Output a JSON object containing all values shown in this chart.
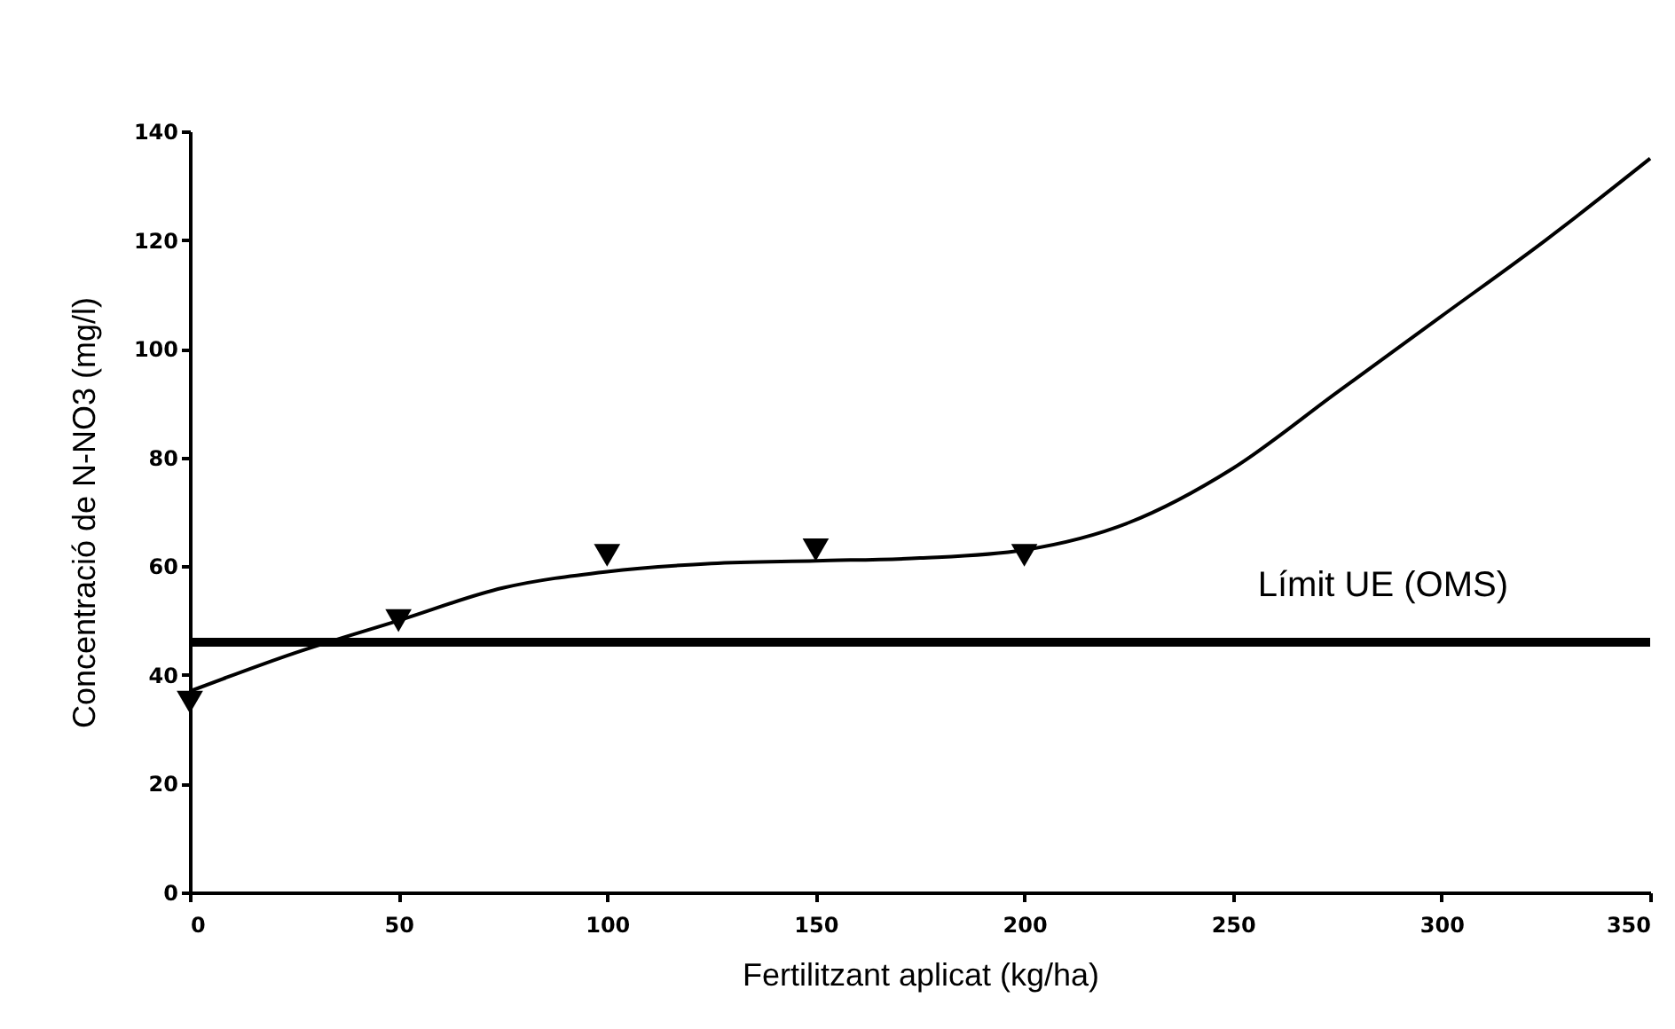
{
  "chart_data": {
    "type": "line",
    "xlabel": "Fertilitzant aplicat  (kg/ha)",
    "ylabel": "Concentració de N-NO3 (mg/l)",
    "xlim": [
      0,
      350
    ],
    "xticks": [
      0,
      50,
      100,
      150,
      200,
      250,
      300,
      350
    ],
    "ylim": [
      0,
      140
    ],
    "yticks": [
      0,
      20,
      40,
      60,
      80,
      100,
      120,
      140
    ],
    "grid": false,
    "series": [
      {
        "type": "scatter",
        "marker": "triangle",
        "color": "#000000",
        "x": [
          0,
          50,
          100,
          150,
          200
        ],
        "values": [
          35,
          50,
          62,
          63,
          62
        ]
      },
      {
        "marker": "none",
        "color": "#000000",
        "x": [
          0,
          25,
          50,
          75,
          100,
          125,
          150,
          175,
          200,
          225,
          250,
          275,
          300,
          325,
          350
        ],
        "values": [
          37,
          44,
          50,
          56,
          59,
          60.5,
          61,
          61.5,
          63,
          68,
          78,
          92,
          106,
          120,
          135
        ]
      }
    ],
    "ref_lines": [
      {
        "axis": "y",
        "value": 46,
        "label": "Límit UE (OMS)",
        "color": "#000000"
      }
    ]
  }
}
